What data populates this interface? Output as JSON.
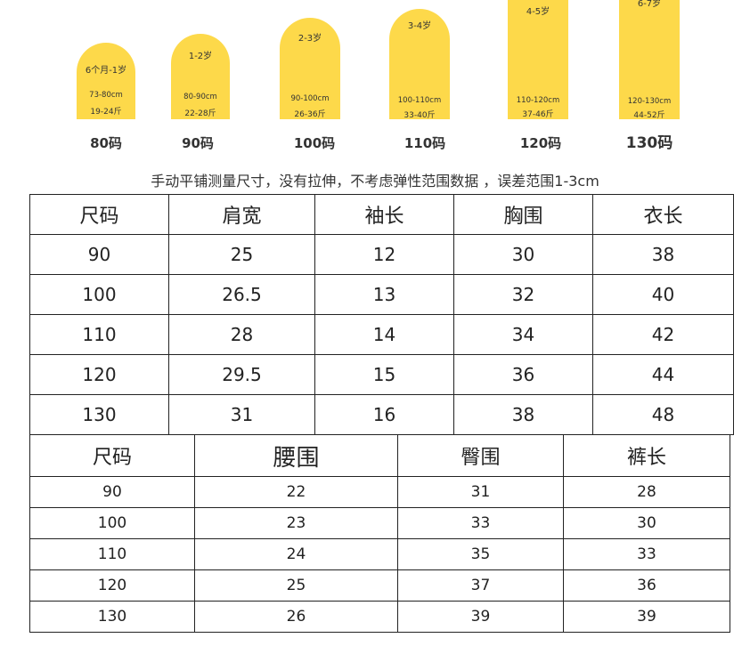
{
  "sizes": [
    {
      "age": "6个月-1岁",
      "height": "73-80cm",
      "weight": "19-24斤",
      "code": "80码"
    },
    {
      "age": "1-2岁",
      "height": "80-90cm",
      "weight": "22-28斤",
      "code": "90码"
    },
    {
      "age": "2-3岁",
      "height": "90-100cm",
      "weight": "26-36斤",
      "code": "100码"
    },
    {
      "age": "3-4岁",
      "height": "100-110cm",
      "weight": "33-40斤",
      "code": "110码"
    },
    {
      "age": "4-5岁",
      "height": "110-120cm",
      "weight": "37-46斤",
      "code": "120码"
    },
    {
      "age": "6-7岁",
      "height": "120-130cm",
      "weight": "44-52斤",
      "code": "130码"
    }
  ],
  "note": "手动平铺测量尺寸，没有拉伸，不考虑弹性范围数据 ，误差范围1-3cm",
  "top_table": {
    "headers": [
      "尺码",
      "肩宽",
      "袖长",
      "胸围",
      "衣长"
    ],
    "rows": [
      [
        "90",
        "25",
        "12",
        "30",
        "38"
      ],
      [
        "100",
        "26.5",
        "13",
        "32",
        "40"
      ],
      [
        "110",
        "28",
        "14",
        "34",
        "42"
      ],
      [
        "120",
        "29.5",
        "15",
        "36",
        "44"
      ],
      [
        "130",
        "31",
        "16",
        "38",
        "48"
      ]
    ]
  },
  "bottom_table": {
    "headers": [
      "尺码",
      "腰围",
      "臀围",
      "裤长"
    ],
    "rows": [
      [
        "90",
        "22",
        "31",
        "28"
      ],
      [
        "100",
        "23",
        "33",
        "30"
      ],
      [
        "110",
        "24",
        "35",
        "33"
      ],
      [
        "120",
        "25",
        "37",
        "36"
      ],
      [
        "130",
        "26",
        "39",
        "39"
      ]
    ]
  },
  "colors": {
    "card": "#fdd94a",
    "border": "#222222"
  }
}
